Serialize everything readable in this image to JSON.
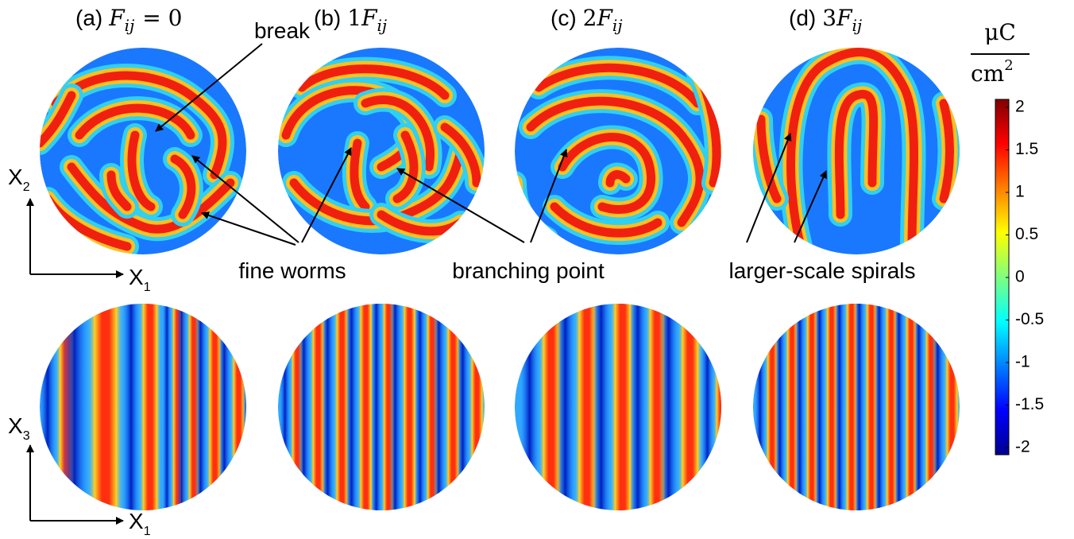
{
  "panels": [
    {
      "label": "(a)",
      "symbol": "F",
      "subscript": "ij",
      "suffix": "= 0"
    },
    {
      "label": "(b)",
      "coefficient": "1",
      "symbol": "F",
      "subscript": "ij"
    },
    {
      "label": "(c)",
      "coefficient": "2",
      "symbol": "F",
      "subscript": "ij"
    },
    {
      "label": "(d)",
      "coefficient": "3",
      "symbol": "F",
      "subscript": "ij"
    }
  ],
  "annotations": {
    "break": "break",
    "fine_worms": "fine worms",
    "branching_point": "branching point",
    "spirals": "larger-scale spirals"
  },
  "axes": {
    "top": {
      "vertical": "X",
      "vertical_sub": "2",
      "horizontal": "X",
      "horizontal_sub": "1"
    },
    "bottom": {
      "vertical": "X",
      "vertical_sub": "3",
      "horizontal": "X",
      "horizontal_sub": "1"
    }
  },
  "colorbar": {
    "unit_top": "μC",
    "unit_bottom": "cm",
    "unit_exponent": "2",
    "ticks": [
      "2",
      "1.5",
      "1",
      "0.5",
      "0",
      "-0.5",
      "-1",
      "-1.5",
      "-2"
    ]
  }
}
